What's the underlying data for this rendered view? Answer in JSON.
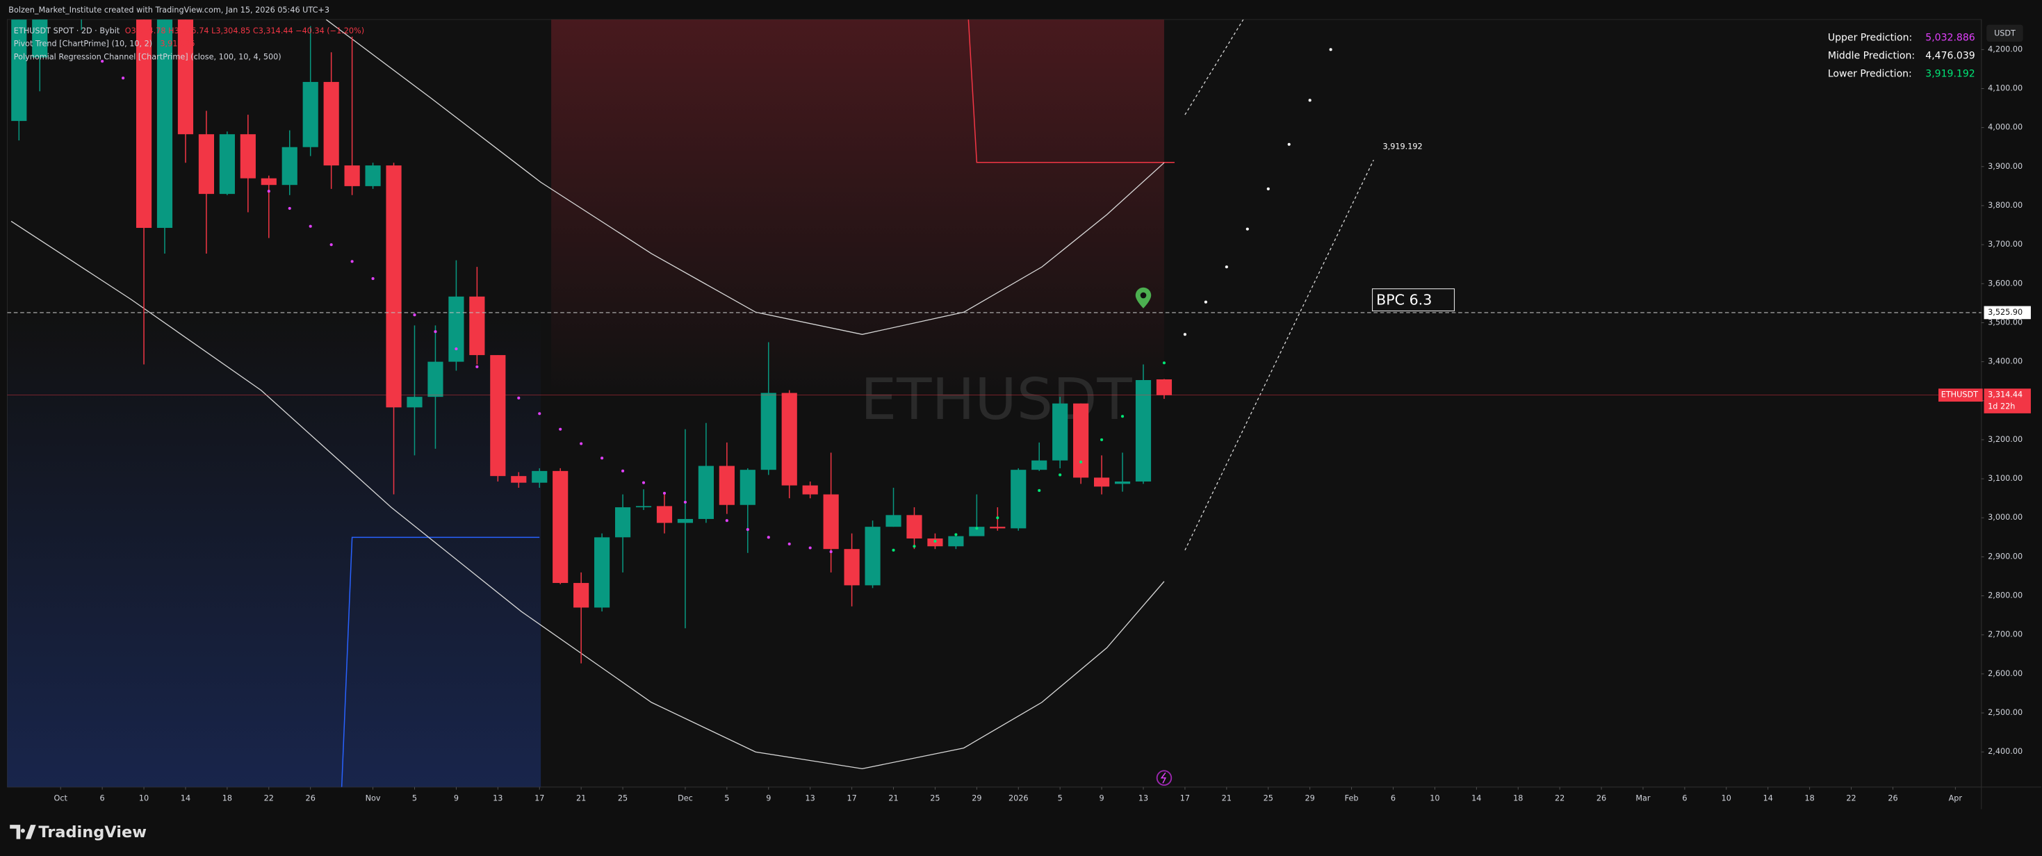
{
  "chart_data": {
    "type": "candlestick",
    "title": "ETHUSDT",
    "attribution": "Bolzen_Market_Institute created with TradingView.com, Jan 15, 2026 05:46 UTC+3",
    "header": {
      "symbol": "ETHUSDT SPOT · 2D · Bybit",
      "ohlc": "O3,354.78 H3,355.74 L3,304.85 C3,314.44 −40.34 (−1.20%)",
      "indicator1": "Pivot Trend [ChartPrime] (10, 10, 2)",
      "indicator1_value": "3,910.86",
      "indicator2": "Polynomial Regression Channel [ChartPrime] (close, 100, 10, 4, 500)"
    },
    "currency": "USDT",
    "brand": "TradingView",
    "predictions": [
      {
        "label": "Upper Prediction:",
        "value": "5,032.886",
        "color": "#e040fb"
      },
      {
        "label": "Middle Prediction:",
        "value": "4,476.039",
        "color": "#ffffff"
      },
      {
        "label": "Lower Prediction:",
        "value": "3,919.192",
        "color": "#00e676"
      }
    ],
    "annotations": {
      "box": "BPC 6.3",
      "band_end": "3,919.192"
    },
    "crosshair": {
      "value": 3525.9,
      "label": "3,525.90"
    },
    "last_price": {
      "value": 3314.44,
      "label": "3,314.44",
      "symbol": "ETHUSDT",
      "countdown": "1d 22h"
    },
    "up_color": "#089981",
    "down_color": "#f23645",
    "categories": [
      null,
      null,
      null,
      null,
      null,
      null,
      null,
      null,
      null,
      null,
      null,
      null,
      null,
      null,
      null,
      null,
      null,
      null,
      null,
      null,
      null,
      null,
      null,
      null,
      null,
      null,
      null,
      null,
      null,
      null,
      null,
      null,
      null,
      null,
      null,
      null,
      null,
      null,
      null,
      null,
      null,
      null,
      null,
      null,
      null,
      null,
      null,
      null,
      null,
      null,
      null,
      null,
      null,
      null,
      null,
      null
    ],
    "open": [
      4017,
      4180,
      4350,
      4320,
      4360,
      4390,
      4450,
      3743,
      4300,
      3983,
      3830,
      3983,
      3870,
      3853,
      3950,
      4117,
      3903,
      3850,
      3903,
      3283,
      3310,
      3400,
      3567,
      3417,
      3107,
      3090,
      3120,
      2833,
      2770,
      2950,
      3027,
      3030,
      2987,
      2997,
      3133,
      3033,
      3123,
      3320,
      3083,
      3060,
      2920,
      2827,
      2977,
      3007,
      2947,
      2927,
      2953,
      2977,
      2973,
      3123,
      3147,
      3293,
      3103,
      3087,
      3093,
      3354.78
    ],
    "high": [
      4300,
      4330,
      4400,
      4380,
      4420,
      4460,
      4500,
      4350,
      4340,
      4043,
      3990,
      4033,
      3877,
      3993,
      4260,
      4193,
      4233,
      3910,
      3910,
      3493,
      3493,
      3660,
      3643,
      3417,
      3117,
      3127,
      3127,
      2860,
      2960,
      3060,
      3073,
      3060,
      3227,
      3243,
      3193,
      3127,
      3450,
      3327,
      3093,
      3167,
      2960,
      2993,
      3077,
      3027,
      2960,
      2960,
      3060,
      3027,
      3127,
      3193,
      3310,
      3293,
      3160,
      3167,
      3393,
      3355.74
    ],
    "low": [
      3967,
      4093,
      4280,
      4250,
      4300,
      4330,
      3393,
      3677,
      3910,
      3677,
      3827,
      3783,
      3717,
      3827,
      3927,
      3843,
      3827,
      3843,
      3060,
      3160,
      3177,
      3377,
      3393,
      3093,
      3077,
      3077,
      2830,
      2627,
      2760,
      2860,
      3020,
      2960,
      2717,
      2987,
      3010,
      2910,
      3110,
      3050,
      3050,
      2860,
      2773,
      2820,
      2977,
      2920,
      2920,
      2920,
      2960,
      2967,
      2967,
      3120,
      3127,
      3087,
      3060,
      3067,
      3087,
      3304.85
    ],
    "close": [
      4277,
      4300,
      4320,
      4360,
      4390,
      4420,
      3743,
      4300,
      3983,
      3830,
      3983,
      3870,
      3853,
      3950,
      4117,
      3903,
      3850,
      3903,
      3283,
      3310,
      3400,
      3567,
      3417,
      3107,
      3090,
      3120,
      2833,
      2770,
      2950,
      3027,
      3030,
      2987,
      2997,
      3133,
      3033,
      3123,
      3320,
      3083,
      3060,
      2920,
      2827,
      2977,
      3007,
      2947,
      2927,
      2953,
      2977,
      2973,
      3123,
      3147,
      3293,
      3103,
      3080,
      3093,
      3353,
      3314.44
    ],
    "pivot_trend": [
      {
        "color": "#e040fb",
        "values": [
          null,
          null,
          null,
          null,
          4170,
          4127,
          null,
          null,
          null,
          null,
          null,
          null,
          3837,
          3793,
          3747,
          3700,
          3657,
          3613,
          null,
          3520,
          3477,
          3433,
          3387,
          null,
          3307,
          3267,
          3227,
          3190,
          3153,
          3120,
          3090,
          3063,
          3040,
          null,
          2993,
          2970,
          2950,
          2933,
          2923,
          2913,
          null,
          null,
          null,
          null,
          null,
          null,
          null,
          null,
          null,
          null,
          null,
          null,
          null,
          null,
          null,
          null
        ]
      },
      {
        "color": "#00e676",
        "values": [
          null,
          null,
          null,
          null,
          null,
          null,
          null,
          null,
          null,
          null,
          null,
          null,
          null,
          null,
          null,
          null,
          null,
          null,
          null,
          null,
          null,
          null,
          null,
          null,
          null,
          null,
          null,
          null,
          null,
          null,
          null,
          null,
          null,
          null,
          null,
          null,
          null,
          null,
          null,
          null,
          null,
          null,
          2917,
          2927,
          2940,
          2957,
          2973,
          3000,
          null,
          3070,
          3110,
          3143,
          3200,
          3260,
          null,
          3397
        ]
      }
    ],
    "middle_projection": {
      "color": "#ffffff",
      "x": [
        56,
        57,
        58,
        59,
        60,
        61,
        62,
        63
      ],
      "values": [
        3470,
        3553,
        3643,
        3740,
        3843,
        3957,
        4070,
        4200
      ]
    },
    "channel": [
      {
        "color": "#d8d8d8",
        "dashed": false,
        "x": [
          14.75,
          19.75,
          25.06,
          30.38,
          35.38,
          40.5,
          45.38,
          49.13,
          52.25,
          55
        ],
        "values": [
          4277,
          4077,
          3860,
          3677,
          3527,
          3470,
          3527,
          3643,
          3777,
          3910
        ]
      },
      {
        "color": "#d8d8d8",
        "dashed": false,
        "x": [
          -0.375,
          5.375,
          11.625,
          17.875,
          24.125,
          30.375,
          35.375,
          40.5,
          45.375,
          49.125,
          52.25,
          55
        ],
        "values": [
          3760,
          3560,
          3327,
          3027,
          2760,
          2527,
          2400,
          2357,
          2410,
          2527,
          2667,
          2837
        ]
      },
      {
        "color": "#d8d8d8",
        "dashed": true,
        "x": [
          56,
          58.8
        ],
        "values": [
          4033,
          4277
        ]
      },
      {
        "color": "#d8d8d8",
        "dashed": true,
        "x": [
          56,
          65.06
        ],
        "values": [
          2917,
          3917
        ]
      }
    ],
    "pivot_levels": [
      {
        "value": 3910.86,
        "color": "#f23645"
      },
      {
        "value": 2950,
        "color": "#2962ff"
      }
    ],
    "xlim": [
      -0.5625,
      94.25
    ],
    "ylim": [
      2310,
      4277
    ],
    "grid": false,
    "xticks": [
      {
        "value": 2,
        "label": "Oct"
      },
      {
        "value": 4,
        "label": "6"
      },
      {
        "value": 6,
        "label": "10"
      },
      {
        "value": 8,
        "label": "14"
      },
      {
        "value": 10,
        "label": "18"
      },
      {
        "value": 12,
        "label": "22"
      },
      {
        "value": 14,
        "label": "26"
      },
      {
        "value": 17,
        "label": "Nov"
      },
      {
        "value": 19,
        "label": "5"
      },
      {
        "value": 21,
        "label": "9"
      },
      {
        "value": 23,
        "label": "13"
      },
      {
        "value": 25,
        "label": "17"
      },
      {
        "value": 27,
        "label": "21"
      },
      {
        "value": 29,
        "label": "25"
      },
      {
        "value": 32,
        "label": "Dec"
      },
      {
        "value": 34,
        "label": "5"
      },
      {
        "value": 36,
        "label": "9"
      },
      {
        "value": 38,
        "label": "13"
      },
      {
        "value": 40,
        "label": "17"
      },
      {
        "value": 42,
        "label": "21"
      },
      {
        "value": 44,
        "label": "25"
      },
      {
        "value": 46,
        "label": "29"
      },
      {
        "value": 48,
        "label": "2026"
      },
      {
        "value": 50,
        "label": "5"
      },
      {
        "value": 52,
        "label": "9"
      },
      {
        "value": 54,
        "label": "13"
      },
      {
        "value": 56,
        "label": "17"
      },
      {
        "value": 58,
        "label": "21"
      },
      {
        "value": 60,
        "label": "25"
      },
      {
        "value": 62,
        "label": "29"
      },
      {
        "value": 64,
        "label": "Feb"
      },
      {
        "value": 66,
        "label": "6"
      },
      {
        "value": 68,
        "label": "10"
      },
      {
        "value": 70,
        "label": "14"
      },
      {
        "value": 72,
        "label": "18"
      },
      {
        "value": 74,
        "label": "22"
      },
      {
        "value": 76,
        "label": "26"
      },
      {
        "value": 78,
        "label": "Mar"
      },
      {
        "value": 80,
        "label": "6"
      },
      {
        "value": 82,
        "label": "10"
      },
      {
        "value": 84,
        "label": "14"
      },
      {
        "value": 86,
        "label": "18"
      },
      {
        "value": 88,
        "label": "22"
      },
      {
        "value": 90,
        "label": "26"
      },
      {
        "value": 93,
        "label": "Apr"
      }
    ],
    "yticks": [
      {
        "value": 2400,
        "label": "2,400.00"
      },
      {
        "value": 2500,
        "label": "2,500.00"
      },
      {
        "value": 2600,
        "label": "2,600.00"
      },
      {
        "value": 2700,
        "label": "2,700.00"
      },
      {
        "value": 2800,
        "label": "2,800.00"
      },
      {
        "value": 2900,
        "label": "2,900.00"
      },
      {
        "value": 3000,
        "label": "3,000.00"
      },
      {
        "value": 3100,
        "label": "3,100.00"
      },
      {
        "value": 3200,
        "label": "3,200.00"
      },
      {
        "value": 3300,
        "label": "3,300.00"
      },
      {
        "value": 3400,
        "label": "3,400.00"
      },
      {
        "value": 3500,
        "label": "3,500.00"
      },
      {
        "value": 3600,
        "label": "3,600.00"
      },
      {
        "value": 3700,
        "label": "3,700.00"
      },
      {
        "value": 3800,
        "label": "3,800.00"
      },
      {
        "value": 3900,
        "label": "3,900.00"
      },
      {
        "value": 4000,
        "label": "4,000.00"
      },
      {
        "value": 4100,
        "label": "4,100.00"
      },
      {
        "value": 4200,
        "label": "4,200.00"
      }
    ]
  }
}
